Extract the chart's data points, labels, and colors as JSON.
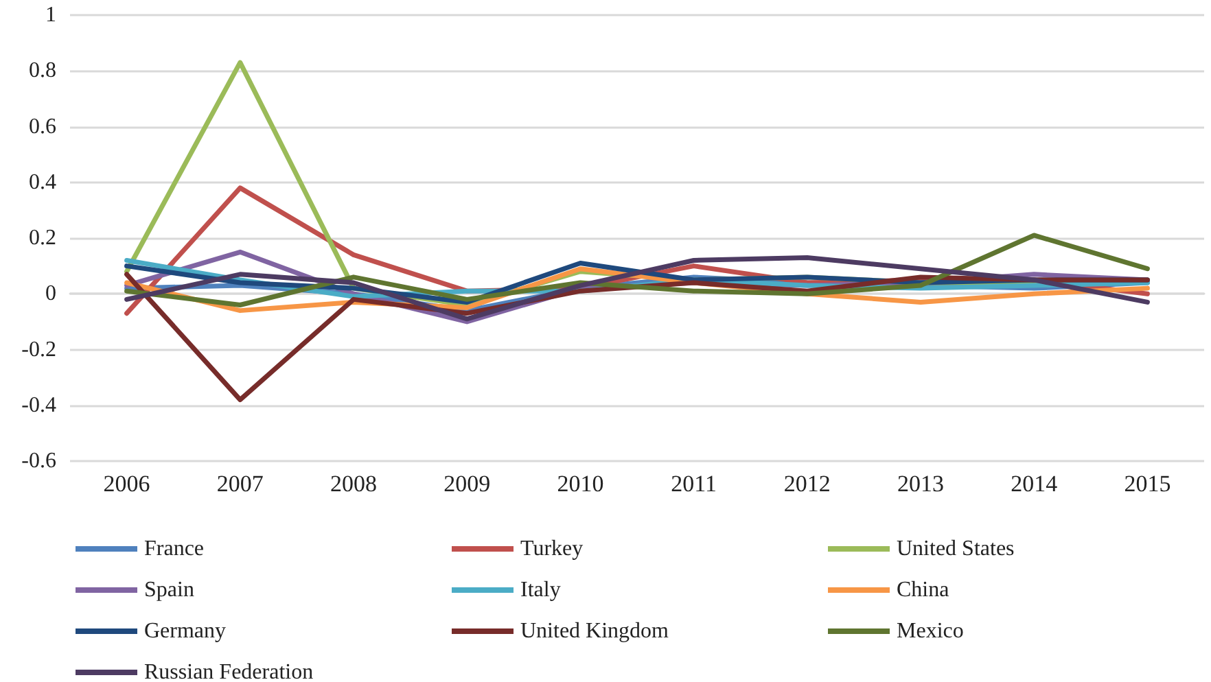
{
  "chart_data": {
    "type": "line",
    "categories": [
      "2006",
      "2007",
      "2008",
      "2009",
      "2010",
      "2011",
      "2012",
      "2013",
      "2014",
      "2015"
    ],
    "ylim": [
      -0.6,
      1
    ],
    "yticks": [
      -0.6,
      -0.4,
      -0.2,
      0,
      0.2,
      0.4,
      0.6,
      0.8,
      1
    ],
    "grid": "y",
    "legend": "bottom",
    "marker": "none",
    "line_style": "solid",
    "series": [
      {
        "name": "France",
        "color": "#4f81bd",
        "values": [
          0.02,
          0.03,
          0.0,
          -0.06,
          0.02,
          0.06,
          0.04,
          0.03,
          0.02,
          0.04
        ]
      },
      {
        "name": "Turkey",
        "color": "#c0504d",
        "values": [
          -0.07,
          0.38,
          0.14,
          0.01,
          0.02,
          0.1,
          0.04,
          0.05,
          0.05,
          0.0
        ]
      },
      {
        "name": "United States",
        "color": "#9bbb59",
        "values": [
          0.08,
          0.83,
          0.02,
          -0.04,
          0.08,
          0.05,
          0.06,
          0.04,
          0.04,
          0.05
        ]
      },
      {
        "name": "Spain",
        "color": "#8064a2",
        "values": [
          0.03,
          0.15,
          0.0,
          -0.1,
          0.02,
          0.04,
          0.03,
          0.04,
          0.07,
          0.05
        ]
      },
      {
        "name": "Italy",
        "color": "#4bacc6",
        "values": [
          0.12,
          0.05,
          -0.01,
          0.01,
          0.01,
          0.05,
          0.03,
          0.02,
          0.03,
          0.04
        ]
      },
      {
        "name": "China",
        "color": "#f79646",
        "values": [
          0.04,
          -0.06,
          -0.03,
          -0.05,
          0.09,
          0.04,
          0.0,
          -0.03,
          0.0,
          0.02
        ]
      },
      {
        "name": "Germany",
        "color": "#1f497d",
        "values": [
          0.1,
          0.04,
          0.02,
          -0.03,
          0.11,
          0.05,
          0.06,
          0.04,
          0.05,
          0.05
        ]
      },
      {
        "name": "United Kingdom",
        "color": "#772c2a",
        "values": [
          0.07,
          -0.38,
          -0.02,
          -0.07,
          0.01,
          0.04,
          0.01,
          0.06,
          0.05,
          0.05
        ]
      },
      {
        "name": "Mexico",
        "color": "#5f7530",
        "values": [
          0.01,
          -0.04,
          0.06,
          -0.02,
          0.04,
          0.01,
          0.0,
          0.03,
          0.21,
          0.09
        ]
      },
      {
        "name": "Russian Federation",
        "color": "#4d3b62",
        "values": [
          -0.02,
          0.07,
          0.04,
          -0.09,
          0.03,
          0.12,
          0.13,
          0.09,
          0.05,
          -0.03
        ]
      }
    ]
  }
}
